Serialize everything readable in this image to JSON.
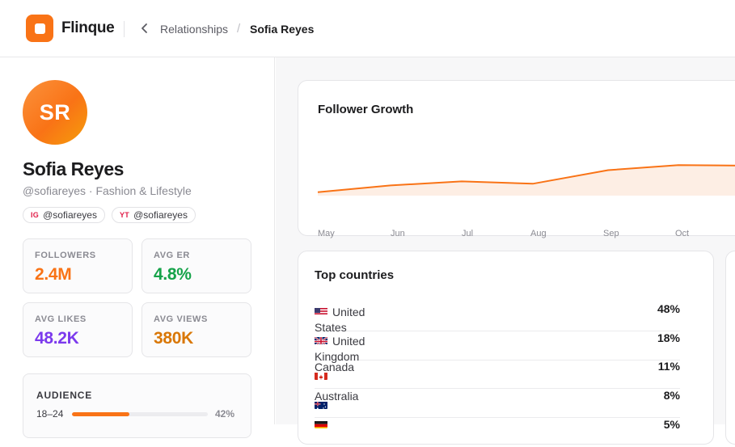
{
  "app": {
    "name": "Flinque"
  },
  "breadcrumb": {
    "parent": "Relationships",
    "separator": "/",
    "current": "Sofia Reyes"
  },
  "profile": {
    "initials": "SR",
    "name": "Sofia Reyes",
    "handle_line": "@sofiareyes · Fashion & Lifestyle",
    "chips": [
      {
        "tag": "IG",
        "handle": "@sofiareyes"
      },
      {
        "tag": "YT",
        "handle": "@sofiareyes"
      }
    ]
  },
  "stats": [
    {
      "label": "FOLLOWERS",
      "value": "2.4M",
      "color": "#f97316"
    },
    {
      "label": "AVG ER",
      "value": "4.8%",
      "color": "#16a34a"
    },
    {
      "label": "AVG LIKES",
      "value": "48.2K",
      "color": "#7c3aed"
    },
    {
      "label": "AVG VIEWS",
      "value": "380K",
      "color": "#d97706"
    }
  ],
  "audience": {
    "title": "AUDIENCE",
    "rows": [
      {
        "label": "18–24",
        "percent": 42,
        "display": "42%"
      }
    ]
  },
  "growth": {
    "title": "Follower Growth",
    "chart_data": {
      "type": "area",
      "title": "Follower Growth",
      "categories": [
        "May",
        "Jun",
        "Jul",
        "Aug",
        "Sep",
        "Oct"
      ],
      "series": [
        {
          "values": [
            0.1,
            0.3,
            0.42,
            0.35,
            0.75,
            0.9
          ]
        }
      ],
      "trailing_value": 0.88,
      "line_color": "#f97316",
      "fill_color": "#fdeee4"
    }
  },
  "countries": {
    "title": "Top countries",
    "rows": [
      {
        "name": "United States",
        "flag": "us",
        "percent": "48%"
      },
      {
        "name": "United Kingdom",
        "flag": "gb",
        "percent": "18%"
      },
      {
        "name": "Canada",
        "flag": "ca",
        "percent": "11%"
      },
      {
        "name": "Australia",
        "flag": "au",
        "percent": "8%"
      },
      {
        "name": "",
        "flag": "de",
        "percent": "5%"
      }
    ]
  },
  "icons": {
    "back": "chevron-left-icon"
  }
}
